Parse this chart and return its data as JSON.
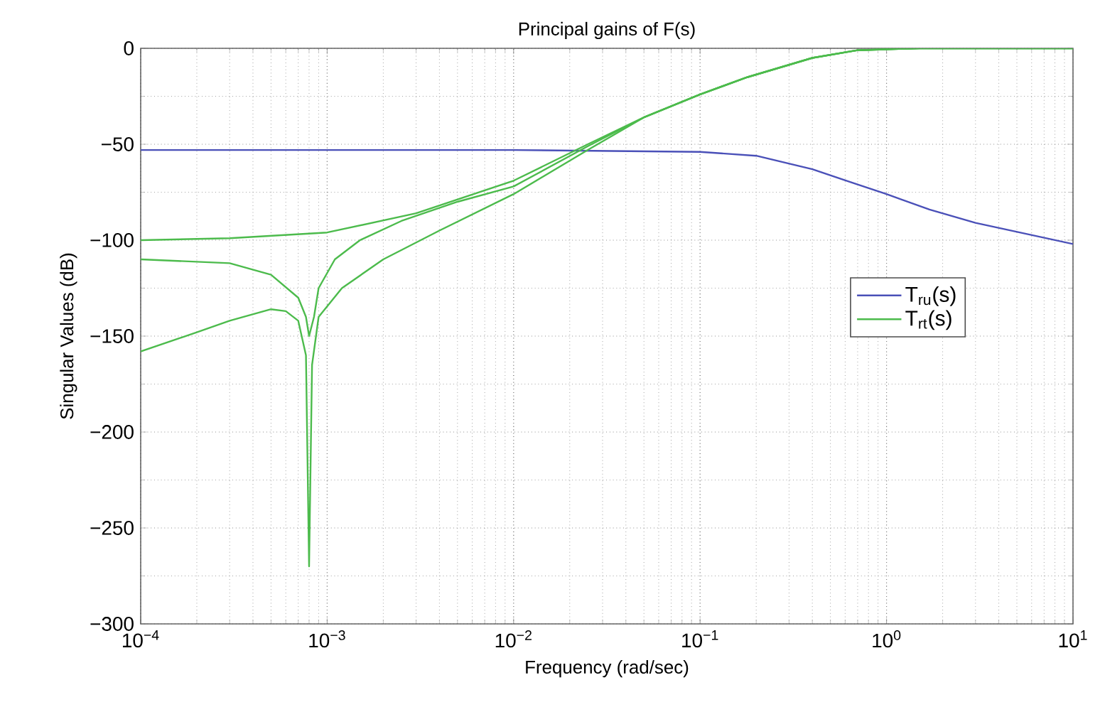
{
  "chart_data": {
    "type": "line",
    "title": "Principal gains of F(s)",
    "xlabel": "Frequency (rad/sec)",
    "ylabel": "Singular Values (dB)",
    "log": "x",
    "grid": true,
    "legend": "right",
    "line_style": "solid",
    "marker": "none",
    "xlim": [
      0.0001,
      10
    ],
    "ylim": [
      -300,
      0
    ],
    "xticks": [
      {
        "value": 0.0001,
        "label": "10$^{−4}$"
      },
      {
        "value": 0.001,
        "label": "10$^{−3}$"
      },
      {
        "value": 0.01,
        "label": "10$^{−2}$"
      },
      {
        "value": 0.1,
        "label": "10$^{−1}$"
      },
      {
        "value": 1,
        "label": "10$^{0}$"
      },
      {
        "value": 10,
        "label": "10$^{1}$"
      }
    ],
    "yticks": [
      {
        "value": -300,
        "label": "−300"
      },
      {
        "value": -250,
        "label": "−250"
      },
      {
        "value": -200,
        "label": "−200"
      },
      {
        "value": -150,
        "label": "−150"
      },
      {
        "value": -100,
        "label": "−100"
      },
      {
        "value": -50,
        "label": "−50"
      },
      0
    ],
    "series": [
      {
        "name": "T$_{ru}$(s)",
        "color": "#4a50b8",
        "x": [
          0.0001,
          0.01,
          0.1,
          0.2,
          0.4,
          0.7,
          1,
          1.7,
          3,
          10
        ],
        "values": [
          -53,
          -53,
          -54,
          -56,
          -63,
          -71,
          -76,
          -84,
          -91,
          -102
        ]
      },
      {
        "name": "T$_{rt}$(s)",
        "color": "#4cbb4c",
        "x": [
          0.0001,
          0.0003,
          0.001,
          0.003,
          0.01,
          0.025,
          0.05,
          0.1,
          0.18,
          0.4,
          0.7,
          1.5,
          10
        ],
        "values": [
          -100,
          -99,
          -96,
          -86,
          -69,
          -50,
          -36,
          -24,
          -15,
          -5,
          -1,
          0,
          0
        ]
      },
      {
        "color": "#4cbb4c",
        "x": [
          0.0001,
          0.0003,
          0.0005,
          0.0007,
          0.00077,
          0.0008,
          0.00085,
          0.0009,
          0.0011,
          0.0015,
          0.0025,
          0.005,
          0.01,
          0.025,
          0.05,
          0.1,
          0.18,
          0.4,
          0.7,
          1.5,
          10
        ],
        "values": [
          -110,
          -112,
          -118,
          -130,
          -140,
          -150,
          -140,
          -125,
          -110,
          -100,
          -90,
          -80,
          -72,
          -51,
          -36,
          -24,
          -15,
          -5,
          -1,
          0,
          0
        ]
      },
      {
        "color": "#4cbb4c",
        "x": [
          0.0001,
          0.0002,
          0.0003,
          0.0005,
          0.0006,
          0.0007,
          0.00077,
          0.0008,
          0.00083,
          0.0009,
          0.0012,
          0.002,
          0.004,
          0.01,
          0.025,
          0.05,
          0.1,
          0.18,
          0.4,
          0.7,
          1.5,
          10
        ],
        "values": [
          -158,
          -148,
          -142,
          -136,
          -137,
          -142,
          -160,
          -270,
          -165,
          -140,
          -125,
          -110,
          -95,
          -76,
          -53,
          -36,
          -24,
          -15,
          -5,
          -1,
          0,
          0
        ]
      }
    ]
  }
}
